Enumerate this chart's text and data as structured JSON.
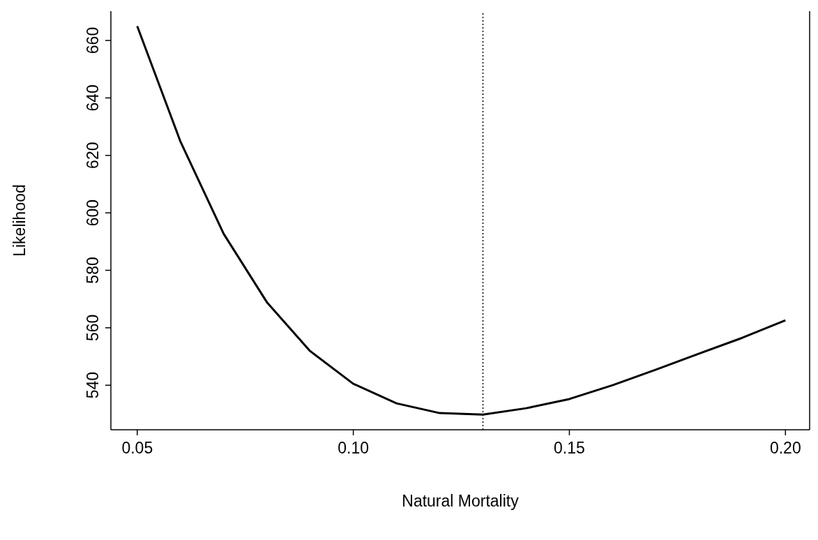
{
  "chart_data": {
    "type": "line",
    "xlabel": "Natural Mortality",
    "ylabel": "Likelihood",
    "x": [
      0.05,
      0.06,
      0.07,
      0.08,
      0.09,
      0.1,
      0.11,
      0.12,
      0.13,
      0.14,
      0.15,
      0.16,
      0.17,
      0.18,
      0.19,
      0.2
    ],
    "series": [
      {
        "color": "#000000",
        "values": [
          665,
          624.8,
          592.7,
          568.9,
          551.9,
          540.5,
          533.7,
          530.3,
          529.8,
          532,
          535.2,
          540,
          545.4,
          551,
          556.5,
          562.6
        ]
      }
    ],
    "xlim": [
      0.0439,
      0.2056
    ],
    "ylim": [
      524.5,
      670.2
    ],
    "xticks": [
      {
        "value": 0.05,
        "label": "0.05"
      },
      {
        "value": 0.1,
        "label": "0.10"
      },
      {
        "value": 0.15,
        "label": "0.15"
      },
      {
        "value": 0.2,
        "label": "0.20"
      }
    ],
    "yticks": [
      540,
      560,
      580,
      600,
      620,
      640,
      660
    ],
    "ref_lines": [
      {
        "axis": "x",
        "value": 0.13,
        "color": "#000000",
        "line_style": "dotted"
      }
    ],
    "line_style": "solid",
    "grid": false
  }
}
